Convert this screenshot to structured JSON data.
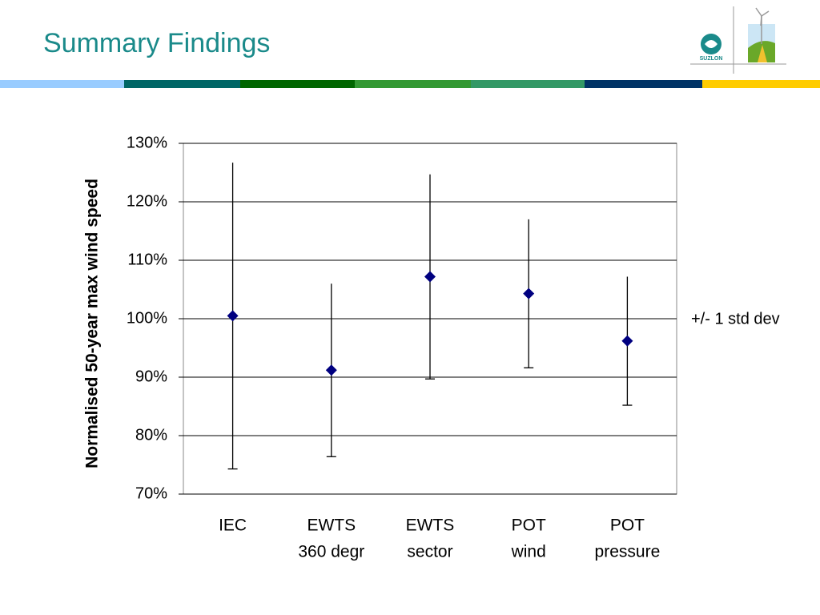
{
  "slide_title": "Summary Findings",
  "logo_text": "SUZLON",
  "chart_data": {
    "type": "errorbar",
    "y_axis_label": "Normalised 50-year max wind speed",
    "annotation": "+/- 1 std dev",
    "categories": [
      [
        "IEC"
      ],
      [
        "EWTS",
        "360 degr"
      ],
      [
        "EWTS",
        "sector"
      ],
      [
        "POT",
        "wind"
      ],
      [
        "POT",
        "pressure"
      ]
    ],
    "series": [
      {
        "color": "#000080",
        "values": [
          100.5,
          91.2,
          107.2,
          104.3,
          96.2
        ],
        "errors": [
          26.2,
          14.8,
          17.5,
          12.7,
          11.0
        ]
      }
    ],
    "ylim": [
      70,
      130
    ],
    "yticks": [
      {
        "value": 70,
        "label": "70%"
      },
      {
        "value": 80,
        "label": "80%"
      },
      {
        "value": 90,
        "label": "90%"
      },
      {
        "value": 100,
        "label": "100%"
      },
      {
        "value": 110,
        "label": "110%"
      },
      {
        "value": 120,
        "label": "120%"
      },
      {
        "value": 130,
        "label": "130%"
      }
    ],
    "grid": true
  }
}
